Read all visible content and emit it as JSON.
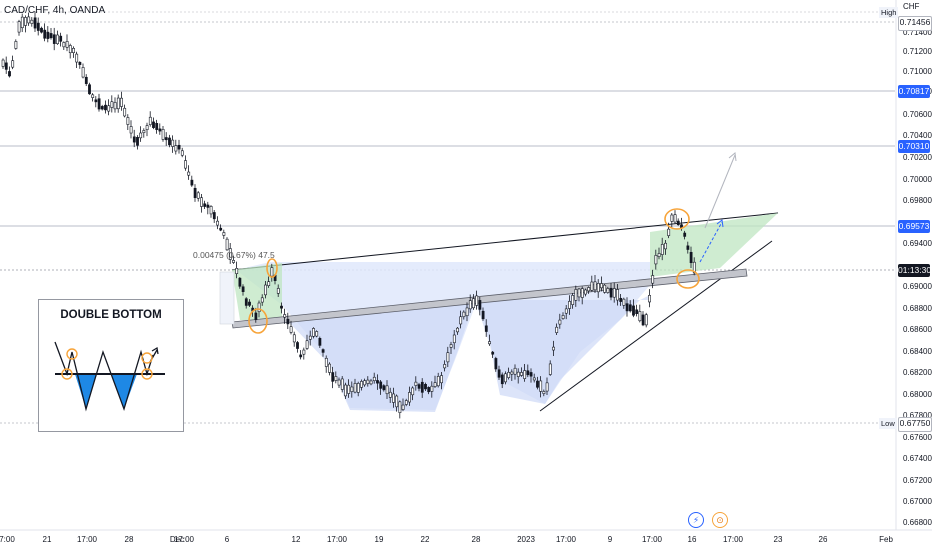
{
  "symbol": {
    "title": "CAD/CHF, 4h, OANDA"
  },
  "axis": {
    "currency": "CHF",
    "ticks": [
      "0.71400",
      "0.71200",
      "0.71000",
      "0.70800",
      "0.70600",
      "0.70400",
      "0.70200",
      "0.70000",
      "0.69800",
      "0.69400",
      "0.69000",
      "0.68800",
      "0.68600",
      "0.68400",
      "0.68200",
      "0.68000",
      "0.67800",
      "0.67600",
      "0.67400",
      "0.67200",
      "0.67000",
      "0.66800"
    ],
    "high_label": "High",
    "low_label": "Low",
    "high_value": "0.71456",
    "low_value": "0.67750",
    "level_1": "0.70817",
    "level_2": "0.70310",
    "level_3": "0.69573",
    "countdown": "01:13:30"
  },
  "time_axis": {
    "labels": [
      "7:00",
      "21",
      "17:00",
      "28",
      "Dec",
      "17:00",
      "6",
      "12",
      "17:00",
      "19",
      "22",
      "28",
      "2023",
      "17:00",
      "9",
      "17:00",
      "16",
      "17:00",
      "23",
      "26",
      "Feb"
    ]
  },
  "annotations": {
    "measure": "0.00475 (0.67%) 47.5",
    "pattern_title": "DOUBLE BOTTOM"
  },
  "icons": {
    "flash": "flash-icon",
    "earnings": "event-icon",
    "flash_glyph": "⚡",
    "event_glyph": "⊙"
  },
  "colors": {
    "up_candle": "#131722",
    "down_candle": "#131722",
    "accent": "#2962ff",
    "neckline": "#787b86",
    "channel_fill": "#dfe8fb",
    "green_zone": "#bfe6c1",
    "orange_mark": "#f7a43a",
    "pattern_blue": "#1e88e5"
  }
}
